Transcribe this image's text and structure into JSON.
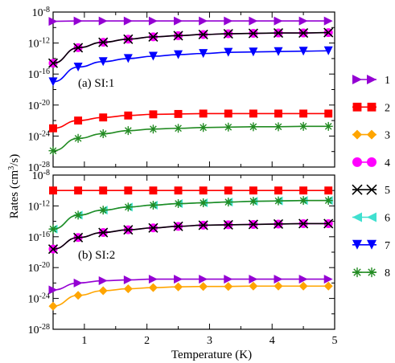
{
  "chart_data": {
    "type": "line",
    "ylabel": "Rates (cm",
    "ylabel_exp": "3",
    "ylabel_tail": "/s)",
    "xlabel": "Temperature (K)",
    "x_ticks": [
      "1",
      "2",
      "3",
      "4",
      "5"
    ],
    "y_ticks": [
      {
        "base": "10",
        "exp": "-8"
      },
      {
        "base": "10",
        "exp": "-12"
      },
      {
        "base": "10",
        "exp": "-16"
      },
      {
        "base": "10",
        "exp": "-20"
      },
      {
        "base": "10",
        "exp": "-24"
      },
      {
        "base": "10",
        "exp": "-28"
      }
    ],
    "xlim": [
      0.5,
      5.0
    ],
    "ylim_log10": [
      -28,
      -8
    ],
    "x": [
      0.5,
      0.9,
      1.3,
      1.7,
      2.1,
      2.5,
      2.9,
      3.3,
      3.7,
      4.1,
      4.5,
      4.9
    ],
    "legend": [
      {
        "name": "1",
        "color": "#9400d3",
        "marker": "triangle-right"
      },
      {
        "name": "2",
        "color": "#ff0000",
        "marker": "square"
      },
      {
        "name": "3",
        "color": "#ffa500",
        "marker": "diamond"
      },
      {
        "name": "4",
        "color": "#ff00ff",
        "marker": "circle"
      },
      {
        "name": "5",
        "color": "#000000",
        "marker": "cross"
      },
      {
        "name": "6",
        "color": "#40e0d0",
        "marker": "triangle-left"
      },
      {
        "name": "7",
        "color": "#0000ff",
        "marker": "triangle-down"
      },
      {
        "name": "8",
        "color": "#228b22",
        "marker": "star"
      }
    ],
    "panels": [
      {
        "label": "(a) SI:1",
        "series": [
          {
            "name": "1",
            "log10_values": [
              -9.2,
              -9.15,
              -9.15,
              -9.15,
              -9.15,
              -9.15,
              -9.15,
              -9.15,
              -9.15,
              -9.15,
              -9.15,
              -9.15
            ]
          },
          {
            "name": "4",
            "log10_values": [
              -14.6,
              -12.6,
              -11.9,
              -11.5,
              -11.2,
              -11.05,
              -10.9,
              -10.8,
              -10.75,
              -10.7,
              -10.7,
              -10.65
            ]
          },
          {
            "name": "5",
            "log10_values": [
              -14.6,
              -12.6,
              -11.9,
              -11.5,
              -11.2,
              -11.05,
              -10.9,
              -10.8,
              -10.75,
              -10.7,
              -10.7,
              -10.65
            ]
          },
          {
            "name": "7",
            "log10_values": [
              -17.0,
              -15.1,
              -14.4,
              -14.0,
              -13.7,
              -13.5,
              -13.35,
              -13.2,
              -13.15,
              -13.1,
              -13.05,
              -13.0
            ]
          },
          {
            "name": "2",
            "log10_values": [
              -23.0,
              -22.0,
              -21.6,
              -21.35,
              -21.2,
              -21.15,
              -21.1,
              -21.1,
              -21.1,
              -21.1,
              -21.1,
              -21.1
            ]
          },
          {
            "name": "8",
            "log10_values": [
              -25.9,
              -24.3,
              -23.7,
              -23.3,
              -23.1,
              -23.0,
              -22.9,
              -22.85,
              -22.8,
              -22.8,
              -22.75,
              -22.75
            ]
          }
        ]
      },
      {
        "label": "(b) SI:2",
        "series": [
          {
            "name": "2",
            "log10_values": [
              -10.0,
              -10.0,
              -10.0,
              -10.0,
              -10.0,
              -10.0,
              -10.0,
              -10.0,
              -10.0,
              -10.0,
              -10.0,
              -10.0
            ]
          },
          {
            "name": "6",
            "log10_values": [
              -15.0,
              -13.2,
              -12.55,
              -12.15,
              -11.9,
              -11.7,
              -11.6,
              -11.5,
              -11.4,
              -11.35,
              -11.3,
              -11.3
            ]
          },
          {
            "name": "8",
            "log10_values": [
              -15.0,
              -13.2,
              -12.55,
              -12.15,
              -11.9,
              -11.7,
              -11.6,
              -11.5,
              -11.4,
              -11.35,
              -11.3,
              -11.3
            ]
          },
          {
            "name": "4",
            "log10_values": [
              -17.6,
              -16.1,
              -15.45,
              -15.1,
              -14.85,
              -14.65,
              -14.5,
              -14.45,
              -14.4,
              -14.35,
              -14.3,
              -14.3
            ]
          },
          {
            "name": "5",
            "log10_values": [
              -17.6,
              -16.1,
              -15.45,
              -15.1,
              -14.85,
              -14.65,
              -14.5,
              -14.45,
              -14.4,
              -14.35,
              -14.3,
              -14.3
            ]
          },
          {
            "name": "1",
            "log10_values": [
              -22.9,
              -22.0,
              -21.7,
              -21.6,
              -21.5,
              -21.5,
              -21.5,
              -21.5,
              -21.5,
              -21.5,
              -21.5,
              -21.5
            ]
          },
          {
            "name": "3",
            "log10_values": [
              -25.0,
              -23.6,
              -23.0,
              -22.75,
              -22.6,
              -22.5,
              -22.45,
              -22.45,
              -22.4,
              -22.4,
              -22.4,
              -22.4
            ]
          }
        ]
      }
    ]
  }
}
